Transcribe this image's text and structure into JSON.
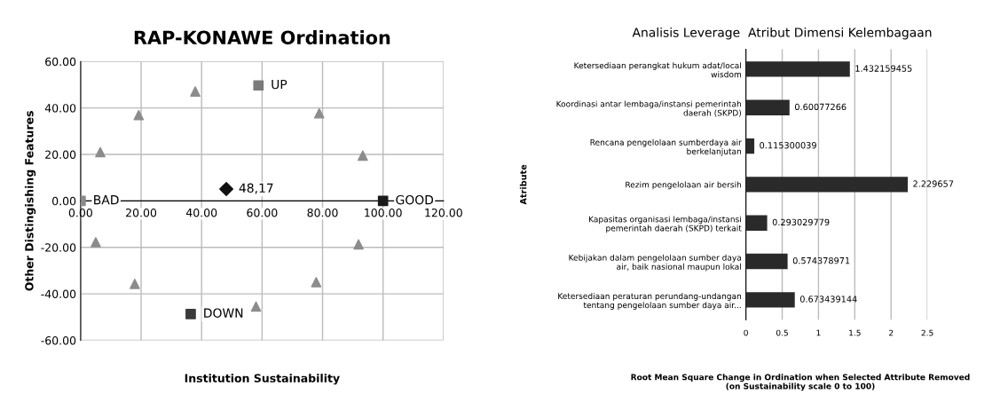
{
  "chart_data": [
    {
      "type": "scatter",
      "title": "RAP-KONAWE Ordination",
      "xlabel": "Institution Sustainability",
      "ylabel": "Other Distingishing Features",
      "series": [
        {
          "marker": "triangle",
          "color": "#8c8c8c",
          "x": [
            37.9,
            19.2,
            6.5,
            5.0,
            17.9,
            58.0,
            77.9,
            91.9,
            93.3,
            78.9
          ],
          "values": [
            47.1,
            36.9,
            21.0,
            -17.8,
            -35.7,
            -45.5,
            -35.0,
            -18.7,
            19.5,
            37.7
          ]
        },
        {
          "marker": "square",
          "colors": [
            "#7a7a7a",
            "#3a3a3a",
            "#1a1a1a",
            "#8a8a8a"
          ],
          "x": [
            58.8,
            36.4,
            100,
            0
          ],
          "values": [
            49.7,
            -48.7,
            0,
            0
          ]
        },
        {
          "marker": "diamond",
          "color": "#111111",
          "x": [
            48.17
          ],
          "values": [
            5.1
          ]
        }
      ],
      "annotations": [
        {
          "text": "UP",
          "x": 58.8,
          "y": 49.7
        },
        {
          "text": "DOWN",
          "x": 36.4,
          "y": -48.7
        },
        {
          "text": "GOOD",
          "x": 100,
          "y": 0
        },
        {
          "text": "BAD",
          "x": 0,
          "y": 0
        },
        {
          "text": "48,17",
          "x": 48.17,
          "y": 5.1
        }
      ],
      "xlim": [
        0,
        120
      ],
      "ylim": [
        -60,
        60
      ],
      "xticks": [
        {
          "value": 0,
          "label": "0.00"
        },
        {
          "value": 20,
          "label": "20.00"
        },
        {
          "value": 40,
          "label": "40.00"
        },
        {
          "value": 60,
          "label": "60.00"
        },
        {
          "value": 80,
          "label": "80.00"
        },
        {
          "value": 100,
          "label": "100.00"
        },
        {
          "value": 120,
          "label": "120.00"
        }
      ],
      "yticks": [
        {
          "value": -60,
          "label": "-60.00"
        },
        {
          "value": -40,
          "label": "-40.00"
        },
        {
          "value": -20,
          "label": "-20.00"
        },
        {
          "value": 0,
          "label": "0.00"
        },
        {
          "value": 20,
          "label": "20.00"
        },
        {
          "value": 40,
          "label": "40.00"
        },
        {
          "value": 60,
          "label": "60.00"
        }
      ],
      "grid": true
    },
    {
      "type": "bar",
      "orientation": "horizontal",
      "title": "Analisis Leverage  Atribut Dimensi Kelembagaan",
      "ylabel": "Atribute",
      "xlabel": "Root Mean Square Change in Ordination when Selected Attribute Removed\n(on Sustainability scale 0 to 100)",
      "categories": [
        "Ketersediaan perangkat hukum adat/local\nwisdom",
        "Koordinasi antar lembaga/instansi pemerintah\ndaerah (SKPD)",
        "Rencana pengelolaan sumberdaya air\nberkelanjutan",
        "Rezim pengelolaan air bersih",
        "Kapasitas organisasi lembaga/instansi\npemerintah daerah (SKPD) terkait",
        "Kebijakan dalam pengelolaan sumber daya\nair, baik nasional maupun lokal",
        "Ketersediaan peraturan perundang-undangan\ntentang pengelolaan sumber daya air..."
      ],
      "values": [
        1.432159455,
        0.60077266,
        0.115300039,
        2.229657,
        0.293029779,
        0.574378971,
        0.673439144
      ],
      "value_labels": [
        "1.432159455",
        "0.60077266",
        "0.115300039",
        "2.229657",
        "0.293029779",
        "0.574378971",
        "0.673439144"
      ],
      "color": "#2a2a2a",
      "xlim": [
        0,
        2.5
      ],
      "xticks": [
        0,
        0.5,
        1,
        1.5,
        2,
        2.5
      ],
      "grid": "x"
    }
  ]
}
